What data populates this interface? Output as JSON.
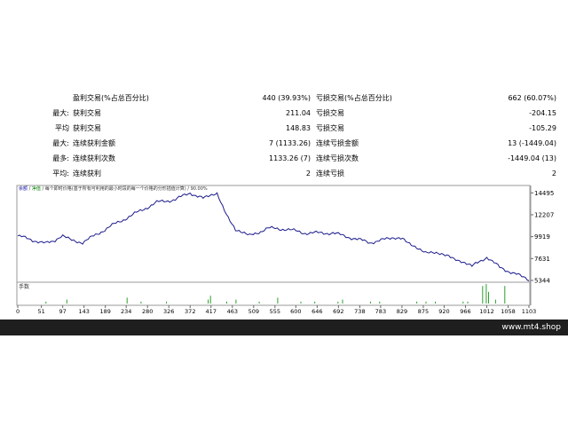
{
  "stats": {
    "rows": [
      {
        "c1": "",
        "c2": "盈利交易(%占总百分比)",
        "c3": "440 (39.93%)",
        "c4": "亏损交易(%占总百分比)",
        "c5": "662 (60.07%)"
      },
      {
        "c1": "最大:",
        "c2": "获利交易",
        "c3": "211.04",
        "c4": "亏损交易",
        "c5": "-204.15"
      },
      {
        "c1": "平均",
        "c2": "获利交易",
        "c3": "148.83",
        "c4": "亏损交易",
        "c5": "-105.29"
      },
      {
        "c1": "最大:",
        "c2": "连续获利金额",
        "c3": "7 (1133.26)",
        "c4": "连续亏损金额",
        "c5": "13 (-1449.04)"
      },
      {
        "c1": "最多:",
        "c2": "连续获利次数",
        "c3": "1133.26 (7)",
        "c4": "连续亏损次数",
        "c5": "-1449.04 (13)"
      },
      {
        "c1": "平均:",
        "c2": "连续获利",
        "c3": "2",
        "c4": "连续亏损",
        "c5": "2"
      }
    ]
  },
  "chart_header": {
    "balance_label": "余额",
    "equity_label": "净值",
    "description": "每个即时价格(基于所有可利用的最小时段的每一个价格的分形插值计算)",
    "quality": "90.00%"
  },
  "colors": {
    "balance_line": "#1a1a8c",
    "volume_bar": "#2ca02c",
    "footer_bg": "#1f1f1f"
  },
  "footer": {
    "brand": "www.mt4.shop"
  },
  "chart_data": [
    {
      "type": "line",
      "series": [
        {
          "name": "余额",
          "x": [
            0,
            60,
            97,
            140,
            200,
            240,
            300,
            340,
            372,
            400,
            430,
            470,
            500,
            540,
            580,
            620,
            680,
            720,
            760,
            800,
            830,
            880,
            930,
            980,
            1012,
            1040,
            1080,
            1103
          ],
          "values": [
            10000,
            9200,
            9900,
            9300,
            11000,
            12000,
            13500,
            13800,
            14500,
            13900,
            14300,
            10500,
            10000,
            10800,
            10700,
            10300,
            10300,
            9800,
            9300,
            9700,
            9800,
            8200,
            8000,
            6800,
            7800,
            6700,
            5900,
            5300
          ]
        }
      ],
      "y_ticks": [
        "14495",
        "12207",
        "9919",
        "7631",
        "5344"
      ],
      "ylim": [
        5344,
        14800
      ],
      "xlim": [
        0,
        1103
      ]
    },
    {
      "type": "bar",
      "ylabel": "手数",
      "x_ticks": [
        "0",
        "51",
        "97",
        "143",
        "189",
        "234",
        "280",
        "326",
        "372",
        "417",
        "463",
        "509",
        "555",
        "600",
        "646",
        "692",
        "738",
        "783",
        "829",
        "875",
        "920",
        "966",
        "1012",
        "1058",
        "1103"
      ],
      "x": [
        60,
        105,
        235,
        265,
        320,
        410,
        415,
        450,
        470,
        520,
        560,
        610,
        640,
        690,
        700,
        760,
        780,
        860,
        880,
        900,
        960,
        970,
        1002,
        1010,
        1015,
        1030,
        1050
      ],
      "values": [
        1,
        2,
        3,
        1,
        1,
        2,
        4,
        1,
        2,
        1,
        3,
        1,
        1,
        1,
        2,
        1,
        1,
        1,
        1,
        1,
        1,
        1,
        9,
        10,
        6,
        2,
        9
      ]
    }
  ]
}
